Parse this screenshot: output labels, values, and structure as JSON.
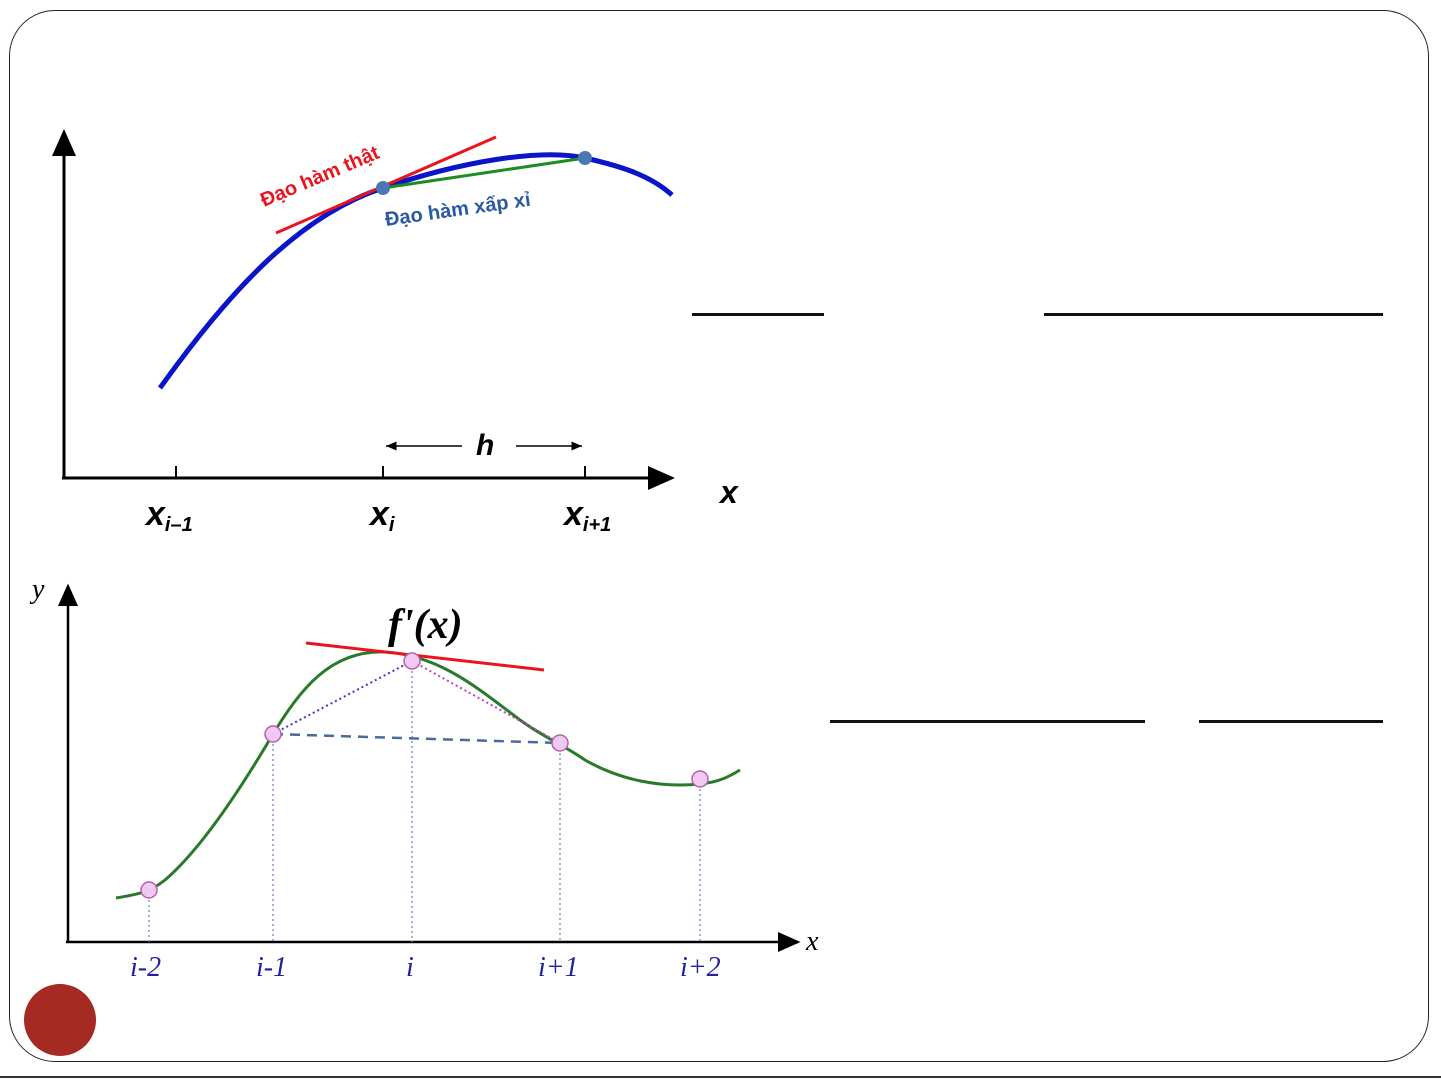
{
  "top_diagram": {
    "true_derivative_label": "Đạo hàm thật",
    "approx_derivative_label": "Đạo hàm xấp xỉ",
    "step_label": "h",
    "axis_label": "x",
    "ticks": [
      {
        "base": "x",
        "sub": "i–1"
      },
      {
        "base": "x",
        "sub": "i"
      },
      {
        "base": "x",
        "sub": "i+1"
      }
    ],
    "colors": {
      "curve": "#0a14c8",
      "tangent": "#e8141e",
      "secant": "#1e8c1e",
      "points": "#4a78b4",
      "approx_label": "#2a5aa0"
    }
  },
  "bottom_diagram": {
    "y_axis_label": "y",
    "x_axis_label": "x",
    "function_label": "f'(x)",
    "ticks": [
      "i-2",
      "i-1",
      "i",
      "i+1",
      "i+2"
    ],
    "colors": {
      "curve": "#2a7a2a",
      "tangent": "#e8141e",
      "tick_labels": "#2020a0",
      "points_fill": "#f0c8f0",
      "points_stroke": "#b060b0",
      "dashed_secant": "#4a6a9a"
    }
  },
  "bullet": {
    "color": "#a42a22"
  }
}
